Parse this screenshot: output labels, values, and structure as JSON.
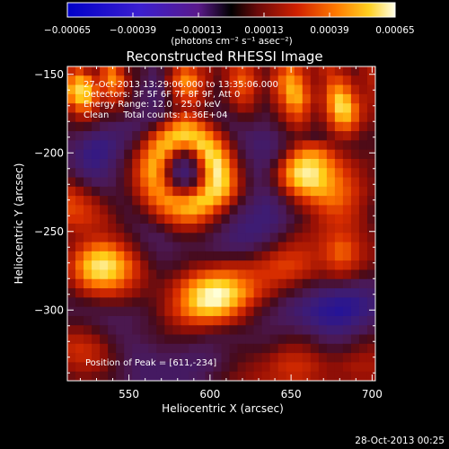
{
  "chart_data": {
    "type": "heatmap",
    "title": "Reconstructed RHESSI Image",
    "xlabel": "Heliocentric X (arcsec)",
    "ylabel": "Heliocentric Y (arcsec)",
    "xlim": [
      512,
      702
    ],
    "ylim": [
      -345,
      -145
    ],
    "x_ticks": [
      550,
      600,
      650,
      700
    ],
    "y_ticks": [
      -150,
      -200,
      -250,
      -300
    ],
    "colorbar": {
      "ticks": [
        "-0.00065",
        "-0.00039",
        "-0.00013",
        "0.00013",
        "0.00039",
        "0.00065"
      ],
      "range": [
        -0.00065,
        0.00065
      ],
      "unit_label": "(photons cm⁻² s⁻¹ asec⁻²)"
    },
    "annotations": [
      "27-Oct-2013 13:29:06.000 to 13:35:06.000",
      "Detectors: 3F 5F 6F 7F 8F 9F, Att 0",
      "Energy Range: 12.0 - 25.0 keV",
      "Clean     Total counts: 1.36E+04"
    ],
    "peak_label": "Position of Peak = [611,-234]",
    "peak": [
      611,
      -234
    ],
    "timestamp": "28-Oct-2013 00:25",
    "image_values": [
      [
        0.55,
        0.62,
        0.5,
        0.45,
        0.6,
        0.7,
        0.55,
        0.4,
        0.35,
        0.3,
        0.25,
        0.3,
        0.4,
        0.55,
        0.65,
        0.6,
        0.5,
        0.45,
        0.4,
        0.45,
        0.55,
        0.6,
        0.55,
        0.45,
        0.4,
        0.5,
        0.6,
        0.7,
        0.6,
        0.5,
        0.45,
        0.5,
        0.55,
        0.5,
        0.45,
        0.4,
        0.45,
        0.5
      ],
      [
        0.7,
        0.8,
        0.72,
        0.55,
        0.62,
        0.75,
        0.65,
        0.45,
        0.35,
        0.28,
        0.22,
        0.28,
        0.45,
        0.62,
        0.75,
        0.7,
        0.55,
        0.45,
        0.38,
        0.45,
        0.58,
        0.66,
        0.6,
        0.48,
        0.42,
        0.55,
        0.68,
        0.78,
        0.7,
        0.55,
        0.45,
        0.48,
        0.6,
        0.62,
        0.55,
        0.45,
        0.45,
        0.5
      ],
      [
        0.8,
        0.9,
        0.85,
        0.65,
        0.58,
        0.66,
        0.6,
        0.42,
        0.32,
        0.25,
        0.2,
        0.25,
        0.4,
        0.55,
        0.68,
        0.66,
        0.52,
        0.42,
        0.35,
        0.42,
        0.55,
        0.62,
        0.58,
        0.45,
        0.4,
        0.52,
        0.66,
        0.82,
        0.78,
        0.6,
        0.48,
        0.5,
        0.68,
        0.75,
        0.66,
        0.52,
        0.46,
        0.48
      ],
      [
        0.72,
        0.85,
        0.82,
        0.62,
        0.5,
        0.55,
        0.5,
        0.38,
        0.3,
        0.24,
        0.2,
        0.24,
        0.35,
        0.48,
        0.58,
        0.58,
        0.48,
        0.4,
        0.34,
        0.38,
        0.48,
        0.55,
        0.52,
        0.42,
        0.38,
        0.48,
        0.6,
        0.78,
        0.8,
        0.64,
        0.5,
        0.52,
        0.72,
        0.88,
        0.8,
        0.6,
        0.5,
        0.48
      ],
      [
        0.55,
        0.66,
        0.65,
        0.5,
        0.4,
        0.42,
        0.4,
        0.32,
        0.28,
        0.24,
        0.22,
        0.26,
        0.35,
        0.42,
        0.48,
        0.48,
        0.42,
        0.36,
        0.32,
        0.34,
        0.4,
        0.46,
        0.44,
        0.38,
        0.34,
        0.42,
        0.52,
        0.66,
        0.7,
        0.58,
        0.46,
        0.5,
        0.7,
        0.9,
        0.88,
        0.68,
        0.52,
        0.46
      ],
      [
        0.42,
        0.48,
        0.48,
        0.4,
        0.34,
        0.34,
        0.32,
        0.28,
        0.26,
        0.24,
        0.24,
        0.3,
        0.42,
        0.55,
        0.62,
        0.58,
        0.48,
        0.4,
        0.32,
        0.3,
        0.32,
        0.36,
        0.36,
        0.32,
        0.3,
        0.36,
        0.44,
        0.55,
        0.6,
        0.52,
        0.42,
        0.46,
        0.62,
        0.8,
        0.82,
        0.66,
        0.5,
        0.44
      ],
      [
        0.34,
        0.36,
        0.34,
        0.3,
        0.26,
        0.24,
        0.22,
        0.22,
        0.24,
        0.28,
        0.36,
        0.48,
        0.62,
        0.74,
        0.8,
        0.76,
        0.66,
        0.54,
        0.42,
        0.34,
        0.28,
        0.28,
        0.28,
        0.26,
        0.26,
        0.3,
        0.36,
        0.44,
        0.48,
        0.44,
        0.38,
        0.4,
        0.52,
        0.64,
        0.66,
        0.56,
        0.44,
        0.4
      ],
      [
        0.28,
        0.26,
        0.22,
        0.18,
        0.16,
        0.18,
        0.2,
        0.24,
        0.3,
        0.4,
        0.54,
        0.68,
        0.8,
        0.86,
        0.88,
        0.86,
        0.82,
        0.72,
        0.58,
        0.44,
        0.32,
        0.26,
        0.22,
        0.2,
        0.2,
        0.24,
        0.3,
        0.36,
        0.4,
        0.38,
        0.34,
        0.36,
        0.42,
        0.48,
        0.5,
        0.44,
        0.38,
        0.36
      ],
      [
        0.24,
        0.2,
        0.14,
        0.1,
        0.1,
        0.14,
        0.2,
        0.28,
        0.38,
        0.52,
        0.68,
        0.8,
        0.82,
        0.74,
        0.7,
        0.76,
        0.88,
        0.86,
        0.74,
        0.56,
        0.4,
        0.28,
        0.22,
        0.18,
        0.18,
        0.22,
        0.3,
        0.4,
        0.5,
        0.56,
        0.56,
        0.52,
        0.46,
        0.42,
        0.4,
        0.38,
        0.36,
        0.36
      ],
      [
        0.22,
        0.16,
        0.1,
        0.08,
        0.1,
        0.16,
        0.24,
        0.34,
        0.46,
        0.62,
        0.76,
        0.8,
        0.66,
        0.46,
        0.38,
        0.48,
        0.72,
        0.9,
        0.86,
        0.68,
        0.48,
        0.32,
        0.24,
        0.2,
        0.2,
        0.26,
        0.38,
        0.54,
        0.68,
        0.76,
        0.76,
        0.7,
        0.6,
        0.5,
        0.44,
        0.4,
        0.38,
        0.38
      ],
      [
        0.24,
        0.18,
        0.12,
        0.1,
        0.14,
        0.2,
        0.28,
        0.38,
        0.52,
        0.68,
        0.8,
        0.72,
        0.48,
        0.28,
        0.22,
        0.32,
        0.58,
        0.86,
        0.94,
        0.78,
        0.56,
        0.38,
        0.28,
        0.22,
        0.24,
        0.34,
        0.5,
        0.7,
        0.84,
        0.9,
        0.88,
        0.8,
        0.7,
        0.6,
        0.52,
        0.46,
        0.42,
        0.4
      ],
      [
        0.3,
        0.24,
        0.18,
        0.16,
        0.18,
        0.24,
        0.3,
        0.4,
        0.54,
        0.7,
        0.8,
        0.68,
        0.42,
        0.22,
        0.16,
        0.26,
        0.5,
        0.8,
        0.96,
        0.84,
        0.62,
        0.42,
        0.3,
        0.24,
        0.28,
        0.4,
        0.58,
        0.78,
        0.92,
        0.96,
        0.94,
        0.86,
        0.76,
        0.66,
        0.58,
        0.5,
        0.44,
        0.4
      ],
      [
        0.4,
        0.34,
        0.28,
        0.24,
        0.24,
        0.26,
        0.32,
        0.4,
        0.52,
        0.66,
        0.76,
        0.7,
        0.5,
        0.32,
        0.26,
        0.34,
        0.56,
        0.82,
        0.94,
        0.86,
        0.64,
        0.44,
        0.32,
        0.26,
        0.28,
        0.38,
        0.54,
        0.72,
        0.86,
        0.92,
        0.92,
        0.86,
        0.78,
        0.7,
        0.62,
        0.54,
        0.46,
        0.42
      ],
      [
        0.52,
        0.46,
        0.4,
        0.34,
        0.3,
        0.3,
        0.32,
        0.38,
        0.48,
        0.6,
        0.72,
        0.74,
        0.64,
        0.52,
        0.48,
        0.56,
        0.72,
        0.88,
        0.9,
        0.8,
        0.6,
        0.42,
        0.3,
        0.24,
        0.24,
        0.3,
        0.42,
        0.56,
        0.68,
        0.76,
        0.8,
        0.8,
        0.76,
        0.7,
        0.64,
        0.56,
        0.48,
        0.42
      ],
      [
        0.6,
        0.56,
        0.5,
        0.44,
        0.38,
        0.34,
        0.32,
        0.34,
        0.42,
        0.52,
        0.64,
        0.72,
        0.76,
        0.74,
        0.74,
        0.8,
        0.86,
        0.86,
        0.78,
        0.64,
        0.48,
        0.34,
        0.26,
        0.2,
        0.18,
        0.22,
        0.3,
        0.4,
        0.5,
        0.58,
        0.64,
        0.68,
        0.7,
        0.68,
        0.62,
        0.54,
        0.46,
        0.4
      ],
      [
        0.62,
        0.6,
        0.56,
        0.5,
        0.44,
        0.38,
        0.34,
        0.32,
        0.36,
        0.42,
        0.52,
        0.62,
        0.7,
        0.76,
        0.8,
        0.82,
        0.78,
        0.7,
        0.58,
        0.46,
        0.34,
        0.26,
        0.2,
        0.16,
        0.14,
        0.18,
        0.24,
        0.32,
        0.4,
        0.46,
        0.52,
        0.58,
        0.62,
        0.62,
        0.58,
        0.52,
        0.44,
        0.38
      ],
      [
        0.58,
        0.58,
        0.56,
        0.52,
        0.48,
        0.42,
        0.36,
        0.32,
        0.32,
        0.34,
        0.4,
        0.48,
        0.56,
        0.62,
        0.66,
        0.66,
        0.6,
        0.52,
        0.42,
        0.34,
        0.26,
        0.2,
        0.16,
        0.14,
        0.14,
        0.16,
        0.22,
        0.28,
        0.34,
        0.4,
        0.46,
        0.52,
        0.56,
        0.58,
        0.56,
        0.5,
        0.44,
        0.38
      ],
      [
        0.5,
        0.52,
        0.52,
        0.5,
        0.48,
        0.44,
        0.4,
        0.34,
        0.3,
        0.28,
        0.3,
        0.34,
        0.4,
        0.46,
        0.48,
        0.48,
        0.44,
        0.38,
        0.32,
        0.26,
        0.2,
        0.16,
        0.14,
        0.14,
        0.16,
        0.2,
        0.26,
        0.32,
        0.38,
        0.42,
        0.46,
        0.5,
        0.54,
        0.56,
        0.54,
        0.5,
        0.44,
        0.4
      ],
      [
        0.44,
        0.48,
        0.52,
        0.54,
        0.54,
        0.5,
        0.46,
        0.4,
        0.34,
        0.28,
        0.26,
        0.26,
        0.3,
        0.34,
        0.36,
        0.36,
        0.34,
        0.3,
        0.26,
        0.22,
        0.18,
        0.16,
        0.16,
        0.18,
        0.22,
        0.28,
        0.34,
        0.4,
        0.44,
        0.46,
        0.48,
        0.52,
        0.56,
        0.6,
        0.58,
        0.52,
        0.46,
        0.42
      ],
      [
        0.46,
        0.54,
        0.62,
        0.68,
        0.7,
        0.66,
        0.58,
        0.48,
        0.4,
        0.32,
        0.28,
        0.26,
        0.26,
        0.28,
        0.3,
        0.3,
        0.3,
        0.28,
        0.26,
        0.24,
        0.22,
        0.22,
        0.24,
        0.28,
        0.32,
        0.38,
        0.44,
        0.48,
        0.5,
        0.5,
        0.5,
        0.54,
        0.6,
        0.66,
        0.64,
        0.56,
        0.48,
        0.44
      ],
      [
        0.52,
        0.64,
        0.76,
        0.84,
        0.86,
        0.82,
        0.72,
        0.6,
        0.48,
        0.38,
        0.32,
        0.28,
        0.28,
        0.3,
        0.32,
        0.34,
        0.34,
        0.34,
        0.34,
        0.34,
        0.34,
        0.34,
        0.36,
        0.4,
        0.44,
        0.5,
        0.54,
        0.56,
        0.56,
        0.54,
        0.52,
        0.54,
        0.6,
        0.66,
        0.64,
        0.56,
        0.48,
        0.44
      ],
      [
        0.56,
        0.7,
        0.84,
        0.92,
        0.94,
        0.9,
        0.8,
        0.68,
        0.56,
        0.44,
        0.36,
        0.32,
        0.32,
        0.34,
        0.38,
        0.42,
        0.44,
        0.46,
        0.48,
        0.5,
        0.5,
        0.5,
        0.5,
        0.52,
        0.54,
        0.58,
        0.6,
        0.6,
        0.58,
        0.54,
        0.5,
        0.5,
        0.54,
        0.58,
        0.56,
        0.5,
        0.44,
        0.4
      ],
      [
        0.54,
        0.66,
        0.8,
        0.88,
        0.9,
        0.86,
        0.78,
        0.66,
        0.56,
        0.46,
        0.4,
        0.36,
        0.38,
        0.42,
        0.48,
        0.56,
        0.62,
        0.66,
        0.68,
        0.68,
        0.66,
        0.62,
        0.6,
        0.58,
        0.58,
        0.58,
        0.58,
        0.56,
        0.52,
        0.48,
        0.44,
        0.42,
        0.44,
        0.46,
        0.44,
        0.4,
        0.36,
        0.34
      ],
      [
        0.46,
        0.56,
        0.66,
        0.72,
        0.74,
        0.72,
        0.66,
        0.58,
        0.5,
        0.44,
        0.4,
        0.4,
        0.44,
        0.52,
        0.62,
        0.72,
        0.8,
        0.86,
        0.88,
        0.86,
        0.8,
        0.72,
        0.66,
        0.6,
        0.56,
        0.52,
        0.48,
        0.44,
        0.4,
        0.36,
        0.32,
        0.3,
        0.3,
        0.3,
        0.28,
        0.26,
        0.24,
        0.24
      ],
      [
        0.38,
        0.44,
        0.5,
        0.54,
        0.56,
        0.56,
        0.52,
        0.48,
        0.44,
        0.4,
        0.4,
        0.42,
        0.48,
        0.58,
        0.7,
        0.82,
        0.92,
        0.98,
        1.0,
        0.96,
        0.88,
        0.78,
        0.68,
        0.58,
        0.5,
        0.44,
        0.38,
        0.34,
        0.3,
        0.26,
        0.22,
        0.18,
        0.16,
        0.14,
        0.14,
        0.14,
        0.16,
        0.18
      ],
      [
        0.32,
        0.34,
        0.36,
        0.38,
        0.4,
        0.4,
        0.4,
        0.38,
        0.36,
        0.36,
        0.38,
        0.42,
        0.5,
        0.6,
        0.72,
        0.84,
        0.94,
        0.98,
        0.98,
        0.92,
        0.82,
        0.7,
        0.58,
        0.48,
        0.4,
        0.34,
        0.28,
        0.24,
        0.2,
        0.16,
        0.12,
        0.08,
        0.06,
        0.04,
        0.04,
        0.06,
        0.1,
        0.14
      ],
      [
        0.3,
        0.3,
        0.3,
        0.3,
        0.3,
        0.3,
        0.3,
        0.3,
        0.3,
        0.32,
        0.36,
        0.42,
        0.5,
        0.58,
        0.68,
        0.76,
        0.82,
        0.84,
        0.82,
        0.76,
        0.66,
        0.56,
        0.46,
        0.38,
        0.32,
        0.28,
        0.24,
        0.2,
        0.16,
        0.12,
        0.08,
        0.04,
        0.02,
        0.0,
        0.02,
        0.06,
        0.1,
        0.14
      ],
      [
        0.34,
        0.34,
        0.32,
        0.3,
        0.28,
        0.26,
        0.26,
        0.26,
        0.28,
        0.3,
        0.34,
        0.38,
        0.44,
        0.5,
        0.56,
        0.6,
        0.62,
        0.62,
        0.6,
        0.56,
        0.5,
        0.44,
        0.38,
        0.32,
        0.28,
        0.26,
        0.24,
        0.22,
        0.2,
        0.16,
        0.12,
        0.08,
        0.06,
        0.06,
        0.08,
        0.12,
        0.16,
        0.2
      ],
      [
        0.42,
        0.42,
        0.4,
        0.36,
        0.32,
        0.28,
        0.26,
        0.26,
        0.28,
        0.3,
        0.32,
        0.36,
        0.4,
        0.42,
        0.44,
        0.44,
        0.44,
        0.42,
        0.4,
        0.38,
        0.36,
        0.34,
        0.32,
        0.3,
        0.28,
        0.28,
        0.28,
        0.28,
        0.26,
        0.24,
        0.2,
        0.16,
        0.14,
        0.14,
        0.16,
        0.2,
        0.24,
        0.28
      ],
      [
        0.5,
        0.5,
        0.48,
        0.44,
        0.38,
        0.32,
        0.28,
        0.26,
        0.26,
        0.28,
        0.3,
        0.32,
        0.34,
        0.34,
        0.34,
        0.34,
        0.32,
        0.3,
        0.3,
        0.3,
        0.3,
        0.3,
        0.3,
        0.3,
        0.3,
        0.32,
        0.34,
        0.36,
        0.36,
        0.34,
        0.3,
        0.26,
        0.24,
        0.24,
        0.26,
        0.3,
        0.34,
        0.36
      ],
      [
        0.54,
        0.56,
        0.54,
        0.5,
        0.44,
        0.36,
        0.3,
        0.26,
        0.24,
        0.24,
        0.26,
        0.28,
        0.28,
        0.28,
        0.28,
        0.26,
        0.26,
        0.26,
        0.28,
        0.3,
        0.32,
        0.34,
        0.34,
        0.34,
        0.36,
        0.38,
        0.42,
        0.44,
        0.44,
        0.42,
        0.38,
        0.34,
        0.32,
        0.32,
        0.34,
        0.38,
        0.4,
        0.42
      ],
      [
        0.52,
        0.54,
        0.54,
        0.5,
        0.44,
        0.38,
        0.32,
        0.26,
        0.22,
        0.22,
        0.22,
        0.24,
        0.24,
        0.24,
        0.22,
        0.22,
        0.22,
        0.24,
        0.26,
        0.3,
        0.34,
        0.36,
        0.38,
        0.4,
        0.42,
        0.46,
        0.5,
        0.52,
        0.52,
        0.5,
        0.46,
        0.42,
        0.4,
        0.4,
        0.42,
        0.44,
        0.46,
        0.46
      ],
      [
        0.46,
        0.48,
        0.48,
        0.46,
        0.42,
        0.36,
        0.3,
        0.26,
        0.22,
        0.2,
        0.2,
        0.2,
        0.2,
        0.2,
        0.2,
        0.2,
        0.22,
        0.24,
        0.28,
        0.32,
        0.36,
        0.4,
        0.42,
        0.44,
        0.46,
        0.5,
        0.54,
        0.56,
        0.56,
        0.54,
        0.5,
        0.46,
        0.44,
        0.44,
        0.46,
        0.48,
        0.48,
        0.48
      ],
      [
        0.4,
        0.42,
        0.42,
        0.4,
        0.38,
        0.34,
        0.3,
        0.26,
        0.22,
        0.2,
        0.2,
        0.2,
        0.2,
        0.2,
        0.2,
        0.22,
        0.24,
        0.28,
        0.32,
        0.36,
        0.4,
        0.42,
        0.44,
        0.46,
        0.48,
        0.5,
        0.52,
        0.54,
        0.54,
        0.52,
        0.48,
        0.46,
        0.44,
        0.44,
        0.44,
        0.46,
        0.46,
        0.46
      ]
    ]
  }
}
